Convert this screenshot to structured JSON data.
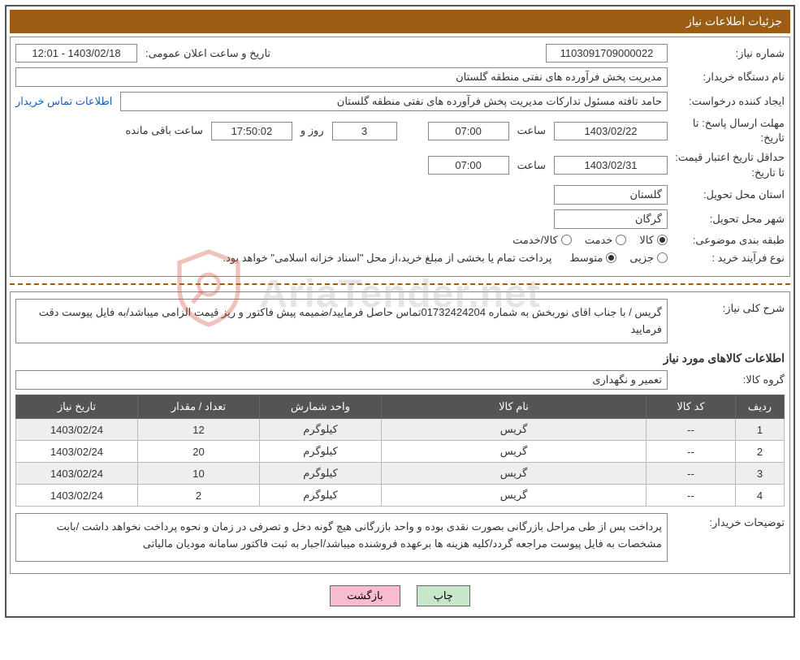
{
  "header": {
    "title": "جزئیات اطلاعات نیاز"
  },
  "fields": {
    "need_number_label": "شماره نیاز:",
    "need_number": "1103091709000022",
    "announce_label": "تاریخ و ساعت اعلان عمومی:",
    "announce_value": "1403/02/18 - 12:01",
    "buyer_org_label": "نام دستگاه خریدار:",
    "buyer_org": "مدیریت پخش فرآورده های نفتی منطقه گلستان",
    "requester_label": "ایجاد کننده درخواست:",
    "requester": "حامد تافته مسئول تدارکات مدیریت پخش فرآورده های نفتی منطقه گلستان",
    "contact_link": "اطلاعات تماس خریدار",
    "response_deadline_label": "مهلت ارسال پاسخ:",
    "until_date_label": "تا تاریخ:",
    "response_date": "1403/02/22",
    "hour_label": "ساعت",
    "response_hour": "07:00",
    "days_label": "روز و",
    "days_value": "3",
    "countdown": "17:50:02",
    "remaining_label": "ساعت باقی مانده",
    "min_validity_label": "حداقل تاریخ اعتبار قیمت:",
    "validity_date": "1403/02/31",
    "validity_hour": "07:00",
    "delivery_province_label": "استان محل تحویل:",
    "delivery_province": "گلستان",
    "delivery_city_label": "شهر محل تحویل:",
    "delivery_city": "گرگان",
    "category_label": "طبقه بندی موضوعی:",
    "cat_goods": "کالا",
    "cat_service": "خدمت",
    "cat_goods_service": "کالا/خدمت",
    "purchase_type_label": "نوع فرآیند خرید :",
    "pt_partial": "جزیی",
    "pt_medium": "متوسط",
    "purchase_note": "پرداخت تمام یا بخشی از مبلغ خرید،از محل \"اسناد خزانه اسلامی\" خواهد بود.",
    "desc_label": "شرح کلی نیاز:",
    "desc_text": "گریس / با جناب اقای نوربخش به شماره 01732424204تماس حاصل فرمایید/ضمیمه پیش فاکتور و ریز قیمت الزامی میباشد/به فایل پیوست دقت فرمایید",
    "items_title": "اطلاعات کالاهای مورد نیاز",
    "group_label": "گروه کالا:",
    "group_value": "تعمیر و نگهداری",
    "buyer_notes_label": "توضیحات خریدار:",
    "buyer_notes": "پرداخت پس از طی مراحل بازرگانی بصورت نقدی بوده و واحد بازرگانی هیچ گونه دخل و تصرفی در زمان و نحوه پرداخت نخواهد داشت /بابت مشخصات به فایل پیوست مراجعه گردد/کلیه هزینه ها برعهده فروشنده میباشد/اجبار به ثبت فاکتور سامانه مودیان مالیاتی"
  },
  "table": {
    "headers": {
      "row": "ردیف",
      "code": "کد کالا",
      "name": "نام کالا",
      "unit": "واحد شمارش",
      "qty": "تعداد / مقدار",
      "date": "تاریخ نیاز"
    },
    "rows": [
      {
        "r": "1",
        "code": "--",
        "name": "گریس",
        "unit": "کیلوگرم",
        "qty": "12",
        "date": "1403/02/24"
      },
      {
        "r": "2",
        "code": "--",
        "name": "گریس",
        "unit": "کیلوگرم",
        "qty": "20",
        "date": "1403/02/24"
      },
      {
        "r": "3",
        "code": "--",
        "name": "گریس",
        "unit": "کیلوگرم",
        "qty": "10",
        "date": "1403/02/24"
      },
      {
        "r": "4",
        "code": "--",
        "name": "گریس",
        "unit": "کیلوگرم",
        "qty": "2",
        "date": "1403/02/24"
      }
    ]
  },
  "buttons": {
    "print": "چاپ",
    "back": "بازگشت"
  },
  "watermark": "AriaTender.net",
  "colors": {
    "header_bg": "#9b5c13",
    "table_header_bg": "#545454",
    "btn_print_bg": "#c8e6c9",
    "btn_back_bg": "#f8bbd0",
    "border": "#888888"
  }
}
